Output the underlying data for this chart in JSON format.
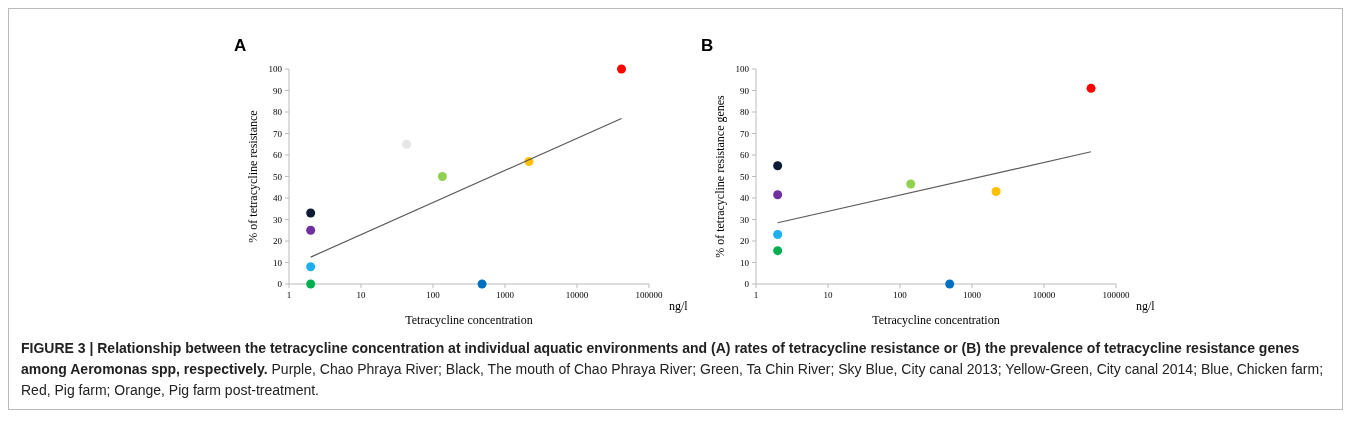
{
  "chart_data": [
    {
      "type": "scatter",
      "title": "A",
      "xlabel": "Tetracycline concentration",
      "ylabel": "% of tetracycline resistance",
      "log": "x",
      "xlim": [
        1,
        100000
      ],
      "xticks": [
        1,
        10,
        100,
        1000,
        10000,
        100000
      ],
      "ylim": [
        0,
        100
      ],
      "yticks": [
        0,
        10,
        20,
        30,
        40,
        50,
        60,
        70,
        80,
        90,
        100
      ],
      "grid": false,
      "series": [
        {
          "marker": "circle",
          "x": [
            2,
            2,
            2,
            2,
            43,
            135,
            480,
            2150,
            41500
          ],
          "values": [
            33,
            25,
            8,
            0,
            65,
            50,
            0,
            57,
            100
          ],
          "colors": [
            "#0d1a33",
            "#7030a0",
            "#1cb0f0",
            "#00b050",
            "#e6e6e6",
            "#92d050",
            "#0070c0",
            "#ffc000",
            "#ff0000"
          ]
        },
        {
          "type": "line",
          "color": "#595959",
          "x": [
            2,
            41500
          ],
          "values": [
            12.5,
            77
          ]
        }
      ],
      "annotations": [
        "ng/l",
        "FIGURE 3 | Relationship between the tetracycline concentration at individual aquatic environments and (A) rates of tetracycline resistance or (B) the prevalence of tetracycline resistance genes among Aeromonas spp, respectively.",
        "Purple, Chao Phraya River; Black, The mouth of Chao Phraya River; Green, Ta Chin River; Sky Blue, City canal 2013; Yellow-Green, City canal 2014; Blue, Chicken farm; Red, Pig farm; Orange, Pig farm post-treatment."
      ]
    },
    {
      "type": "scatter",
      "title": "B",
      "xlabel": "Tetracycline concentration",
      "ylabel": "% of tetracycline resistance genes",
      "log": "x",
      "xlim": [
        1,
        100000
      ],
      "xticks": [
        1,
        10,
        100,
        1000,
        10000,
        100000
      ],
      "ylim": [
        0,
        100
      ],
      "yticks": [
        0,
        10,
        20,
        30,
        40,
        50,
        60,
        70,
        80,
        90,
        100
      ],
      "grid": false,
      "series": [
        {
          "marker": "circle",
          "x": [
            2,
            2,
            2,
            2,
            141,
            490,
            2160,
            45000
          ],
          "values": [
            55,
            41.5,
            23,
            15.5,
            46.5,
            0,
            43,
            91
          ],
          "colors": [
            "#0d1a33",
            "#7030a0",
            "#1cb0f0",
            "#00b050",
            "#92d050",
            "#0070c0",
            "#ffc000",
            "#ff0000"
          ]
        },
        {
          "type": "line",
          "color": "#595959",
          "x": [
            2,
            45000
          ],
          "values": [
            28.5,
            61.5
          ]
        }
      ],
      "annotations": [
        "ng/l"
      ]
    }
  ]
}
